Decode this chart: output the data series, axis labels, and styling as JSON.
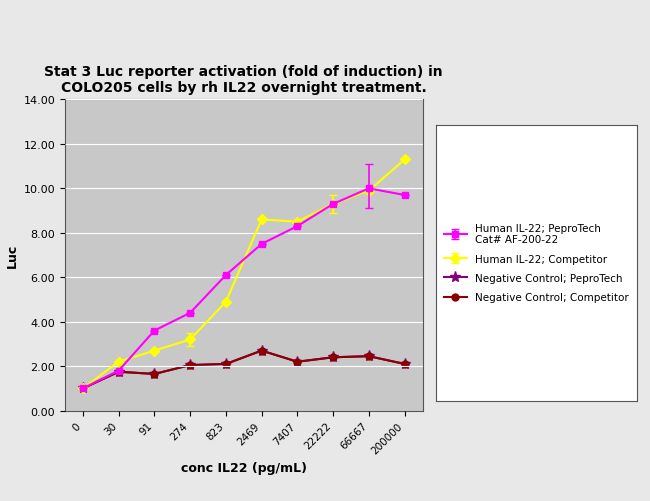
{
  "title": "Stat 3 Luc reporter activation (fold of induction) in\nCOLO205 cells by rh IL22 overnight treatment.",
  "xlabel": "conc IL22 (pg/mL)",
  "ylabel": "Luc",
  "x_labels": [
    "0",
    "30",
    "91",
    "274",
    "823",
    "2469",
    "7407",
    "22222",
    "66667",
    "200000"
  ],
  "x_values": [
    0,
    1,
    2,
    3,
    4,
    5,
    6,
    7,
    8,
    9
  ],
  "ylim": [
    0,
    14.0
  ],
  "yticks": [
    0.0,
    2.0,
    4.0,
    6.0,
    8.0,
    10.0,
    12.0,
    14.0
  ],
  "ytick_labels": [
    "0.00",
    "2.00",
    "4.00",
    "6.00",
    "8.00",
    "10.00",
    "12.00",
    "14.00"
  ],
  "peprotech_y": [
    1.0,
    1.8,
    3.6,
    4.4,
    6.1,
    7.5,
    8.3,
    9.3,
    10.0,
    9.7
  ],
  "peprotech_err_low": [
    0,
    0,
    0,
    0,
    0,
    0,
    0,
    0,
    0.9,
    0
  ],
  "peprotech_err_high": [
    0,
    0,
    0,
    0,
    0,
    0,
    0,
    0,
    1.1,
    0
  ],
  "competitor_y": [
    1.0,
    2.2,
    2.7,
    3.2,
    4.9,
    8.6,
    8.5,
    9.3,
    9.9,
    11.3
  ],
  "competitor_err_low": [
    0,
    0,
    0,
    0.3,
    0,
    0,
    0,
    0.4,
    0,
    0
  ],
  "competitor_err_high": [
    0,
    0,
    0,
    0.3,
    0,
    0,
    0,
    0.4,
    0,
    0
  ],
  "neg_ctrl_pepro_y": [
    1.0,
    1.75,
    1.65,
    2.05,
    2.1,
    2.7,
    2.2,
    2.4,
    2.45,
    2.1
  ],
  "neg_ctrl_comp_y": [
    1.0,
    1.75,
    1.65,
    2.05,
    2.1,
    2.7,
    2.2,
    2.4,
    2.45,
    2.1
  ],
  "color_peprotech": "#FF00FF",
  "color_competitor": "#FFFF00",
  "color_neg_pepro": "#800080",
  "color_neg_comp": "#8B0000",
  "legend_entries": [
    "Human IL-22; PeproTech\nCat# AF-200-22",
    "Human IL-22; Competitor",
    "Negative Control; PeproTech",
    "Negative Control; Competitor"
  ],
  "bg_color": "#C8C8C8",
  "outer_bg": "#E8E8E8",
  "plot_border_color": "#888888"
}
